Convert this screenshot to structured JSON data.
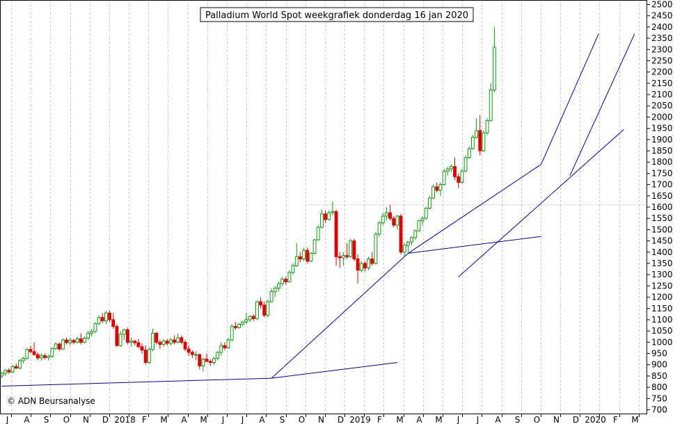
{
  "chart_data": {
    "type": "candlestick",
    "title": "Palladium World Spot weekgrafiek donderdag 16 jan 2020",
    "copyright": "© ADN Beursanalyse",
    "ylim": [
      680,
      2520
    ],
    "y_ticks": [
      700,
      750,
      800,
      850,
      900,
      950,
      1000,
      1050,
      1100,
      1150,
      1200,
      1250,
      1300,
      1350,
      1400,
      1450,
      1500,
      1550,
      1600,
      1650,
      1700,
      1750,
      1800,
      1850,
      1900,
      1950,
      2000,
      2050,
      2100,
      2150,
      2200,
      2250,
      2300,
      2350,
      2400,
      2450,
      2500
    ],
    "x_ticks": [
      "J",
      "A",
      "S",
      "O",
      "N",
      "D",
      "2018",
      "F",
      "M",
      "A",
      "M",
      "J",
      "J",
      "A",
      "S",
      "O",
      "N",
      "D",
      "2019",
      "F",
      "M",
      "A",
      "M",
      "J",
      "J",
      "A",
      "S",
      "O",
      "N",
      "D",
      "2020",
      "F",
      "M"
    ],
    "up_color": "#119911",
    "down_color": "#dd0000",
    "trendline_color": "#0000aa",
    "grid": "vertical-dashed",
    "reference_level": 1610,
    "trend_points": [
      {
        "x": 0,
        "y": 805
      },
      {
        "x": 75,
        "y": 840
      },
      {
        "x": 113,
        "y": 1395
      },
      {
        "x": 150,
        "y": 1790
      },
      {
        "x": 166,
        "y": 2370
      }
    ],
    "trendlines": [
      {
        "from": 0,
        "to": 1
      },
      {
        "from": 1,
        "to": 2
      },
      {
        "from": 2,
        "to": 3
      },
      {
        "from": 3,
        "to": 4
      }
    ],
    "secondary_lines": [
      {
        "x1": 75,
        "y1": 840,
        "x2": 110,
        "y2": 910
      },
      {
        "x1": 113,
        "y1": 1395,
        "x2": 150,
        "y2": 1470
      },
      {
        "x1": 127,
        "y1": 1290,
        "x2": 173,
        "y2": 1945
      },
      {
        "x1": 158,
        "y1": 1740,
        "x2": 176,
        "y2": 2370
      }
    ],
    "ohlc": [
      [
        0,
        850,
        870,
        840,
        862
      ],
      [
        1,
        862,
        880,
        850,
        875
      ],
      [
        2,
        875,
        885,
        860,
        868
      ],
      [
        3,
        868,
        900,
        862,
        892
      ],
      [
        4,
        892,
        905,
        880,
        885
      ],
      [
        5,
        885,
        925,
        880,
        918
      ],
      [
        6,
        918,
        935,
        905,
        928
      ],
      [
        7,
        928,
        975,
        922,
        968
      ],
      [
        8,
        968,
        985,
        950,
        958
      ],
      [
        9,
        958,
        1000,
        940,
        945
      ],
      [
        10,
        945,
        955,
        920,
        930
      ],
      [
        11,
        930,
        950,
        918,
        940
      ],
      [
        12,
        940,
        950,
        925,
        932
      ],
      [
        13,
        932,
        945,
        920,
        938
      ],
      [
        14,
        938,
        978,
        930,
        972
      ],
      [
        15,
        972,
        1000,
        965,
        992
      ],
      [
        16,
        992,
        1000,
        960,
        970
      ],
      [
        17,
        970,
        1018,
        965,
        1010
      ],
      [
        18,
        1010,
        1020,
        990,
        998
      ],
      [
        19,
        998,
        1020,
        985,
        1008
      ],
      [
        20,
        1008,
        1015,
        990,
        1000
      ],
      [
        21,
        1000,
        1025,
        995,
        1015
      ],
      [
        22,
        1015,
        1040,
        990,
        1000
      ],
      [
        23,
        1000,
        1025,
        995,
        1018
      ],
      [
        24,
        1018,
        1050,
        1010,
        1040
      ],
      [
        25,
        1040,
        1060,
        1025,
        1048
      ],
      [
        26,
        1048,
        1090,
        1040,
        1082
      ],
      [
        27,
        1082,
        1120,
        1075,
        1110
      ],
      [
        28,
        1110,
        1130,
        1085,
        1095
      ],
      [
        29,
        1095,
        1140,
        1080,
        1130
      ],
      [
        30,
        1130,
        1140,
        1090,
        1100
      ],
      [
        31,
        1100,
        1130,
        1060,
        1070
      ],
      [
        32,
        1070,
        1080,
        980,
        985
      ],
      [
        33,
        985,
        1050,
        980,
        1035
      ],
      [
        34,
        1035,
        1060,
        1010,
        1055
      ],
      [
        35,
        1055,
        1065,
        990,
        1000
      ],
      [
        36,
        1000,
        1020,
        980,
        1005
      ],
      [
        37,
        1005,
        1010,
        985,
        998
      ],
      [
        38,
        998,
        1015,
        975,
        980
      ],
      [
        39,
        980,
        995,
        950,
        965
      ],
      [
        40,
        965,
        985,
        900,
        910
      ],
      [
        41,
        910,
        975,
        905,
        968
      ],
      [
        42,
        968,
        1060,
        960,
        1040
      ],
      [
        43,
        1040,
        1045,
        990,
        1000
      ],
      [
        44,
        1000,
        1010,
        970,
        990
      ],
      [
        45,
        990,
        1015,
        980,
        1005
      ],
      [
        46,
        1005,
        1015,
        985,
        995
      ],
      [
        47,
        995,
        1020,
        985,
        1010
      ],
      [
        48,
        1010,
        1030,
        990,
        1000
      ],
      [
        49,
        1000,
        1040,
        995,
        1020
      ],
      [
        50,
        1020,
        1030,
        990,
        1000
      ],
      [
        51,
        1000,
        1010,
        960,
        970
      ],
      [
        52,
        970,
        985,
        940,
        955
      ],
      [
        53,
        955,
        965,
        930,
        945
      ],
      [
        54,
        945,
        960,
        920,
        945
      ],
      [
        55,
        945,
        950,
        880,
        895
      ],
      [
        56,
        895,
        930,
        870,
        925
      ],
      [
        57,
        925,
        950,
        910,
        915
      ],
      [
        58,
        915,
        925,
        895,
        910
      ],
      [
        59,
        910,
        935,
        900,
        928
      ],
      [
        60,
        928,
        960,
        920,
        955
      ],
      [
        61,
        955,
        1000,
        940,
        985
      ],
      [
        62,
        985,
        1000,
        965,
        975
      ],
      [
        63,
        975,
        1020,
        970,
        1010
      ],
      [
        64,
        1010,
        1080,
        1005,
        1070
      ],
      [
        65,
        1070,
        1090,
        1055,
        1065
      ],
      [
        66,
        1065,
        1085,
        1060,
        1080
      ],
      [
        67,
        1080,
        1095,
        1070,
        1090
      ],
      [
        68,
        1090,
        1130,
        1080,
        1100
      ],
      [
        69,
        1100,
        1120,
        1090,
        1115
      ],
      [
        70,
        1115,
        1125,
        1095,
        1105
      ],
      [
        71,
        1105,
        1185,
        1100,
        1180
      ],
      [
        72,
        1180,
        1200,
        1150,
        1165
      ],
      [
        73,
        1165,
        1180,
        1110,
        1120
      ],
      [
        74,
        1120,
        1190,
        1110,
        1180
      ],
      [
        75,
        1180,
        1240,
        1175,
        1225
      ],
      [
        76,
        1225,
        1250,
        1200,
        1240
      ],
      [
        77,
        1240,
        1270,
        1225,
        1260
      ],
      [
        78,
        1260,
        1290,
        1250,
        1280
      ],
      [
        79,
        1280,
        1290,
        1255,
        1268
      ],
      [
        80,
        1268,
        1320,
        1265,
        1310
      ],
      [
        81,
        1310,
        1350,
        1300,
        1340
      ],
      [
        82,
        1340,
        1440,
        1335,
        1380
      ],
      [
        83,
        1380,
        1400,
        1355,
        1370
      ],
      [
        84,
        1370,
        1420,
        1360,
        1408
      ],
      [
        85,
        1408,
        1420,
        1350,
        1360
      ],
      [
        86,
        1360,
        1400,
        1355,
        1395
      ],
      [
        87,
        1395,
        1460,
        1390,
        1455
      ],
      [
        88,
        1455,
        1520,
        1450,
        1510
      ],
      [
        89,
        1510,
        1590,
        1505,
        1570
      ],
      [
        90,
        1570,
        1585,
        1530,
        1545
      ],
      [
        91,
        1545,
        1585,
        1540,
        1575
      ],
      [
        92,
        1575,
        1625,
        1565,
        1580
      ],
      [
        93,
        1580,
        1590,
        1340,
        1380
      ],
      [
        94,
        1380,
        1400,
        1330,
        1375
      ],
      [
        95,
        1375,
        1400,
        1340,
        1385
      ],
      [
        96,
        1385,
        1440,
        1370,
        1380
      ],
      [
        97,
        1380,
        1460,
        1375,
        1450
      ],
      [
        98,
        1450,
        1460,
        1360,
        1370
      ],
      [
        99,
        1370,
        1390,
        1260,
        1320
      ],
      [
        100,
        1320,
        1360,
        1310,
        1350
      ],
      [
        101,
        1350,
        1360,
        1315,
        1330
      ],
      [
        102,
        1330,
        1380,
        1320,
        1370
      ],
      [
        103,
        1370,
        1400,
        1340,
        1350
      ],
      [
        104,
        1350,
        1490,
        1345,
        1480
      ],
      [
        105,
        1480,
        1540,
        1470,
        1530
      ],
      [
        106,
        1530,
        1575,
        1520,
        1560
      ],
      [
        107,
        1560,
        1600,
        1540,
        1575
      ],
      [
        108,
        1575,
        1610,
        1540,
        1550
      ],
      [
        109,
        1550,
        1560,
        1510,
        1520
      ],
      [
        110,
        1520,
        1565,
        1500,
        1560
      ],
      [
        111,
        1560,
        1570,
        1390,
        1400
      ],
      [
        112,
        1400,
        1440,
        1385,
        1430
      ],
      [
        113,
        1430,
        1450,
        1400,
        1445
      ],
      [
        114,
        1445,
        1470,
        1430,
        1465
      ],
      [
        115,
        1465,
        1500,
        1455,
        1495
      ],
      [
        116,
        1495,
        1545,
        1490,
        1540
      ],
      [
        117,
        1540,
        1560,
        1520,
        1550
      ],
      [
        118,
        1550,
        1600,
        1545,
        1595
      ],
      [
        119,
        1595,
        1650,
        1590,
        1640
      ],
      [
        120,
        1640,
        1700,
        1635,
        1690
      ],
      [
        121,
        1690,
        1710,
        1665,
        1675
      ],
      [
        122,
        1675,
        1710,
        1650,
        1700
      ],
      [
        123,
        1700,
        1770,
        1695,
        1760
      ],
      [
        124,
        1760,
        1780,
        1740,
        1770
      ],
      [
        125,
        1770,
        1790,
        1755,
        1780
      ],
      [
        126,
        1780,
        1820,
        1720,
        1735
      ],
      [
        127,
        1735,
        1750,
        1685,
        1710
      ],
      [
        128,
        1710,
        1770,
        1705,
        1760
      ],
      [
        129,
        1760,
        1830,
        1755,
        1820
      ],
      [
        130,
        1820,
        1870,
        1815,
        1860
      ],
      [
        131,
        1860,
        1920,
        1855,
        1910
      ],
      [
        132,
        1910,
        1995,
        1905,
        1940
      ],
      [
        133,
        1940,
        2010,
        1830,
        1850
      ],
      [
        134,
        1850,
        1940,
        1845,
        1930
      ],
      [
        135,
        1930,
        1995,
        1920,
        1985
      ],
      [
        136,
        1985,
        2150,
        1980,
        2120
      ],
      [
        137,
        2120,
        2400,
        2110,
        2310
      ]
    ]
  }
}
